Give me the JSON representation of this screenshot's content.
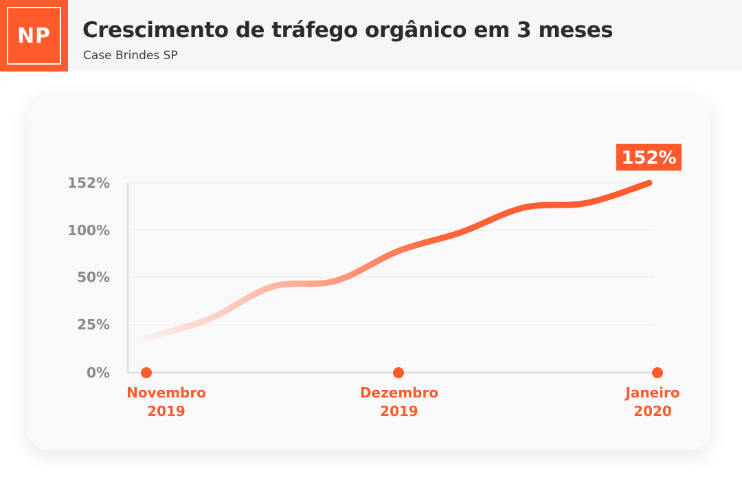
{
  "brand": {
    "logo_text": "NP",
    "accent_color": "#ff5a2c"
  },
  "header": {
    "title": "Crescimento de tráfego orgânico em 3 meses",
    "subtitle": "Case Brindes SP"
  },
  "chart_data": {
    "type": "line",
    "categories": [
      "Novembro 2019",
      "Dezembro 2019",
      "Janeiro 2020"
    ],
    "category_labels": [
      [
        "Novembro",
        "2019"
      ],
      [
        "Dezembro",
        "2019"
      ],
      [
        "Janeiro",
        "2020"
      ]
    ],
    "y_ticks": [
      "0%",
      "25%",
      "50%",
      "100%",
      "152%"
    ],
    "ylim": [
      0,
      152
    ],
    "series": [
      {
        "x": [
          0.0,
          0.25,
          0.5,
          0.75,
          1.0,
          1.25,
          1.5,
          1.75,
          2.0
        ],
        "values": [
          18,
          28,
          45,
          48,
          78,
          98,
          125,
          130,
          152
        ]
      }
    ],
    "end_label": "152%",
    "grid": true,
    "colors": {
      "line": "#ff5a2c",
      "axis": "#e0e0e0",
      "tick": "#8a8a8a"
    }
  }
}
